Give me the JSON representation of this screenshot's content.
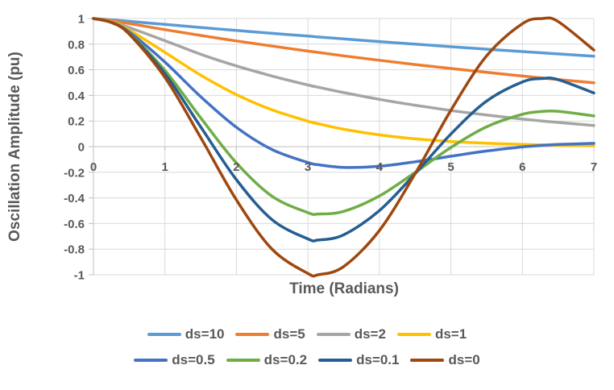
{
  "chart_data": {
    "type": "line",
    "title": "",
    "xlabel": "Time (Radians)",
    "ylabel": "Oscillation Amplitude (pu)",
    "xlim": [
      0,
      7
    ],
    "ylim": [
      -1,
      1
    ],
    "x_ticks": [
      0,
      1,
      2,
      3,
      4,
      5,
      6,
      7
    ],
    "y_ticks": [
      1,
      0.8,
      0.6,
      0.4,
      0.2,
      0,
      -0.2,
      -0.4,
      -0.6,
      -0.8,
      -1
    ],
    "grid": true,
    "legend_position": "bottom",
    "legend_rows_of": 4,
    "x": [
      0,
      0.25,
      0.5,
      1,
      1.5,
      2,
      2.5,
      3,
      3.142,
      3.5,
      4,
      4.5,
      5,
      5.5,
      6,
      6.283,
      6.5,
      7
    ],
    "series": [
      {
        "name": "ds=10",
        "color": "#5B9BD5",
        "values": [
          1,
          0.99,
          0.978,
          0.954,
          0.93,
          0.907,
          0.884,
          0.863,
          0.856,
          0.841,
          0.82,
          0.8,
          0.78,
          0.761,
          0.742,
          0.732,
          0.724,
          0.706
        ]
      },
      {
        "name": "ds=5",
        "color": "#ED7D31",
        "values": [
          1,
          0.984,
          0.961,
          0.913,
          0.868,
          0.825,
          0.785,
          0.746,
          0.736,
          0.709,
          0.674,
          0.641,
          0.61,
          0.58,
          0.551,
          0.536,
          0.524,
          0.498
        ]
      },
      {
        "name": "ds=2",
        "color": "#A5A5A5",
        "values": [
          1,
          0.977,
          0.93,
          0.827,
          0.721,
          0.63,
          0.551,
          0.481,
          0.464,
          0.422,
          0.369,
          0.323,
          0.282,
          0.247,
          0.216,
          0.2,
          0.189,
          0.165
        ]
      },
      {
        "name": "ds=1",
        "color": "#FFC000",
        "values": [
          1,
          0.974,
          0.91,
          0.736,
          0.558,
          0.406,
          0.287,
          0.199,
          0.179,
          0.136,
          0.092,
          0.061,
          0.04,
          0.027,
          0.017,
          0.014,
          0.011,
          0.007
        ]
      },
      {
        "name": "ds=0.5",
        "color": "#4472C4",
        "values": [
          1,
          0.971,
          0.896,
          0.66,
          0.39,
          0.151,
          -0.023,
          -0.124,
          -0.141,
          -0.162,
          -0.153,
          -0.118,
          -0.075,
          -0.034,
          -0.002,
          0.01,
          0.017,
          0.026
        ]
      },
      {
        "name": "ds=0.2",
        "color": "#70AD47",
        "values": [
          1,
          0.97,
          0.885,
          0.595,
          0.225,
          -0.127,
          -0.388,
          -0.515,
          -0.526,
          -0.505,
          -0.385,
          -0.201,
          -0.006,
          0.155,
          0.253,
          0.275,
          0.276,
          0.24
        ]
      },
      {
        "name": "ds=0.1",
        "color": "#255E91",
        "values": [
          1,
          0.969,
          0.882,
          0.569,
          0.154,
          -0.258,
          -0.571,
          -0.72,
          -0.729,
          -0.688,
          -0.499,
          -0.211,
          0.099,
          0.356,
          0.505,
          0.532,
          0.523,
          0.419
        ]
      },
      {
        "name": "ds=0",
        "color": "#9E480E",
        "values": [
          1,
          0.969,
          0.878,
          0.54,
          0.071,
          -0.416,
          -0.801,
          -0.99,
          -1.0,
          -0.936,
          -0.654,
          -0.211,
          0.284,
          0.709,
          0.96,
          1.0,
          0.977,
          0.754
        ]
      }
    ]
  },
  "style": {
    "text_color": "#595959",
    "gridline_color": "#D9D9D9",
    "axis_color": "#BFBFBF",
    "background": "#FFFFFF"
  }
}
